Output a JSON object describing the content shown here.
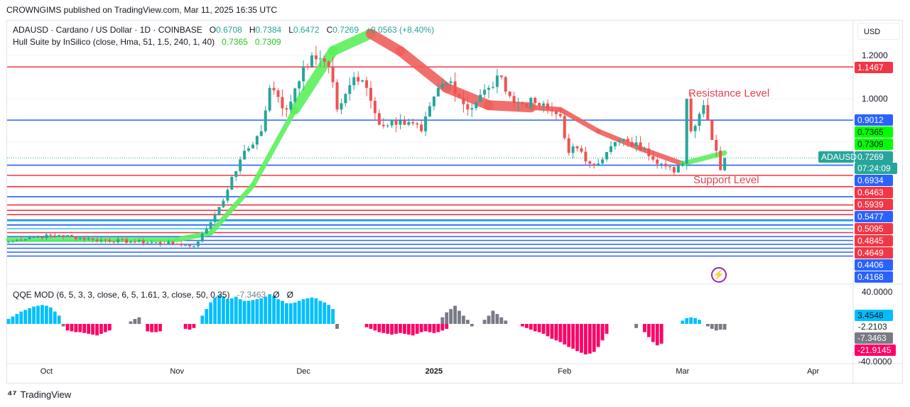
{
  "publisher_line": "CROWNGIMS published on TradingView.com, Mar 11, 2025 16:35 UTC",
  "legend": {
    "symbol": "ADAUSD · Cardano / US Dollar · 1D · COINBASE",
    "o_label": "O",
    "o": "0.6708",
    "h_label": "H",
    "h": "0.7384",
    "l_label": "L",
    "l": "0.6472",
    "c_label": "C",
    "c": "0.7269",
    "change": "+0.0563 (+8.40%)",
    "hull": "Hull Suite by InSilico (close, Hma, 51, 1.5, 240, 1, 40)",
    "hull_v1": "0.7365",
    "hull_v2": "0.7309",
    "qqe": "QQE MOD (6, 5, 3, 3, close, 6, 5, 1.61, 3, close, 50, 0.35)",
    "qqe_v": "-7.3463",
    "qqe_n1": "Ø",
    "qqe_n2": "Ø"
  },
  "currency": "USD",
  "price_ticks": [
    "1.2000",
    "1.0000"
  ],
  "price_labels": [
    {
      "text": "1.1467",
      "price": 1.1467,
      "color": "#f23645"
    },
    {
      "text": "0.9012",
      "price": 0.9012,
      "color": "#2962ff"
    },
    {
      "text": "0.7365",
      "price": 0.7365,
      "color": "#00ff00"
    },
    {
      "text": "0.7309",
      "price": 0.7309,
      "color": "#00ff00"
    },
    {
      "text": "0.7269",
      "price": 0.7269,
      "color": "#26a69a"
    },
    {
      "text": "0.6934",
      "price": 0.6934,
      "color": "#2962ff"
    },
    {
      "text": "0.6463",
      "price": 0.6463,
      "color": "#f23645"
    },
    {
      "text": "0.5939",
      "price": 0.5939,
      "color": "#f23645"
    },
    {
      "text": "0.5477",
      "price": 0.5477,
      "color": "#2962ff"
    },
    {
      "text": "0.5095",
      "price": 0.5095,
      "color": "#f23645"
    },
    {
      "text": "0.4845",
      "price": 0.4845,
      "color": "#f23645"
    },
    {
      "text": "0.4649",
      "price": 0.4649,
      "color": "#f23645"
    },
    {
      "text": "0.4406",
      "price": 0.4406,
      "color": "#2962ff"
    },
    {
      "text": "0.4168",
      "price": 0.4168,
      "color": "#2962ff"
    }
  ],
  "symbol_tag": "ADAUSD",
  "countdown": "07:24:09",
  "qqe_ticks": [
    "40.0000",
    "-2.2103",
    "-40.0000"
  ],
  "qqe_labels": [
    {
      "text": "3.4548",
      "color": "#00bfff"
    },
    {
      "text": "-7.3463",
      "color": "#787b86"
    },
    {
      "text": "-21.9145",
      "color": "#ff0066"
    }
  ],
  "annotations": {
    "resistance": "Resistance Level",
    "support": "Support Level"
  },
  "time_labels": [
    {
      "text": "Oct",
      "day": 9
    },
    {
      "text": "Nov",
      "day": 40
    },
    {
      "text": "Dec",
      "day": 70
    },
    {
      "text": "2025",
      "day": 101
    },
    {
      "text": "Feb",
      "day": 132
    },
    {
      "text": "Mar",
      "day": 160
    },
    {
      "text": "Apr",
      "day": 191
    }
  ],
  "footer": "TradingView",
  "chart_data": {
    "type": "candlestick",
    "title": "ADAUSD · Cardano / US Dollar · 1D · COINBASE",
    "x_start": "2024-09-22",
    "x_unit": "day",
    "ylim": [
      0.25,
      1.3
    ],
    "close_keyframes": [
      [
        0,
        0.34
      ],
      [
        5,
        0.36
      ],
      [
        12,
        0.37
      ],
      [
        20,
        0.35
      ],
      [
        30,
        0.34
      ],
      [
        40,
        0.33
      ],
      [
        44,
        0.32
      ],
      [
        47,
        0.4
      ],
      [
        50,
        0.5
      ],
      [
        52,
        0.58
      ],
      [
        55,
        0.72
      ],
      [
        60,
        0.85
      ],
      [
        62,
        1.05
      ],
      [
        66,
        0.95
      ],
      [
        70,
        1.15
      ],
      [
        72,
        1.2
      ],
      [
        76,
        1.15
      ],
      [
        78,
        0.95
      ],
      [
        82,
        1.1
      ],
      [
        85,
        1.05
      ],
      [
        88,
        0.88
      ],
      [
        93,
        0.9
      ],
      [
        98,
        0.85
      ],
      [
        102,
        1.05
      ],
      [
        105,
        1.08
      ],
      [
        109,
        0.95
      ],
      [
        114,
        1.05
      ],
      [
        117,
        1.1
      ],
      [
        120,
        0.98
      ],
      [
        125,
        0.98
      ],
      [
        128,
        0.95
      ],
      [
        131,
        0.92
      ],
      [
        133,
        0.75
      ],
      [
        134,
        0.78
      ],
      [
        138,
        0.7
      ],
      [
        141,
        0.72
      ],
      [
        144,
        0.8
      ],
      [
        147,
        0.8
      ],
      [
        151,
        0.77
      ],
      [
        155,
        0.7
      ],
      [
        158,
        0.66
      ],
      [
        160,
        0.7
      ],
      [
        161,
        1.0
      ],
      [
        162,
        0.85
      ],
      [
        165,
        0.97
      ],
      [
        166,
        0.9
      ],
      [
        168,
        0.76
      ],
      [
        169,
        0.67
      ],
      [
        170,
        0.7269
      ]
    ],
    "hull_keyframes": [
      [
        0,
        0.35
      ],
      [
        40,
        0.35
      ],
      [
        48,
        0.38
      ],
      [
        58,
        0.6
      ],
      [
        68,
        0.95
      ],
      [
        77,
        1.22
      ],
      [
        86,
        1.3
      ],
      [
        93,
        1.22
      ],
      [
        104,
        1.05
      ],
      [
        114,
        0.97
      ],
      [
        124,
        0.96
      ],
      [
        131,
        0.95
      ],
      [
        140,
        0.85
      ],
      [
        150,
        0.77
      ],
      [
        160,
        0.7
      ],
      [
        170,
        0.75
      ]
    ],
    "support_resistance_levels": [
      1.1467,
      0.9012,
      0.6934,
      0.6463,
      0.5939,
      0.5477,
      0.5095,
      0.4845,
      0.4649,
      0.4406,
      0.4168,
      0.4,
      0.385,
      0.37,
      0.355,
      0.34,
      0.325,
      0.31,
      0.295,
      0.28,
      0.27
    ],
    "qqe_segments": [
      {
        "from": 0,
        "color": "#00bfff",
        "values": [
          6,
          9,
          12,
          15,
          17,
          19,
          21,
          22,
          23,
          22,
          20,
          15,
          10
        ]
      },
      {
        "from": 13,
        "color": "#787b86",
        "values": [
          -3
        ]
      },
      {
        "from": 14,
        "color": "#ff0066",
        "values": [
          -8,
          -9,
          -10,
          -10,
          -11,
          -12,
          -13,
          -14,
          -12,
          -10,
          -8
        ]
      },
      {
        "from": 29,
        "color": "#787b86",
        "values": [
          3,
          6,
          8
        ]
      },
      {
        "from": 33,
        "color": "#ff0066",
        "values": [
          -9,
          -10,
          -10,
          -9
        ]
      },
      {
        "from": 42,
        "color": "#ff0066",
        "values": [
          -6,
          -7,
          -5
        ]
      },
      {
        "from": 46,
        "color": "#00bfff",
        "values": [
          10,
          18,
          26,
          32,
          35,
          33,
          30,
          31,
          33,
          30,
          28,
          28,
          29,
          30,
          31,
          33,
          36,
          34,
          30,
          28,
          25,
          25,
          26,
          28,
          30,
          31,
          32,
          31,
          28,
          26,
          23,
          18
        ]
      },
      {
        "from": 78,
        "color": "#787b86",
        "values": [
          -6
        ]
      },
      {
        "from": 85,
        "color": "#ff0066",
        "values": [
          -4,
          -6,
          -8,
          -10,
          -11,
          -12,
          -13,
          -12,
          -11,
          -12,
          -13,
          -14,
          -12,
          -10,
          -9,
          -10,
          -11,
          -10,
          -8,
          -6
        ]
      },
      {
        "from": 103,
        "color": "#787b86",
        "values": [
          8,
          14,
          18,
          22,
          16,
          10,
          5,
          -3
        ]
      },
      {
        "from": 113,
        "color": "#787b86",
        "values": [
          5,
          10,
          16,
          12,
          8,
          4
        ]
      },
      {
        "from": 122,
        "color": "#ff0066",
        "values": [
          -3,
          -5,
          -7,
          -9,
          -10,
          -12,
          -15,
          -18,
          -20,
          -22,
          -25,
          -28,
          -30,
          -33,
          -35,
          -37,
          -36,
          -34,
          -28,
          -20,
          -12
        ]
      },
      {
        "from": 149,
        "color": "#787b86",
        "values": [
          -5
        ]
      },
      {
        "from": 151,
        "color": "#ff0066",
        "values": [
          -10,
          -16,
          -22,
          -26,
          -24
        ]
      },
      {
        "from": 160,
        "color": "#00bfff",
        "values": [
          4,
          7,
          8,
          7,
          5
        ]
      },
      {
        "from": 166,
        "color": "#787b86",
        "values": [
          -3,
          -6,
          -8,
          -7,
          -7
        ]
      }
    ]
  }
}
